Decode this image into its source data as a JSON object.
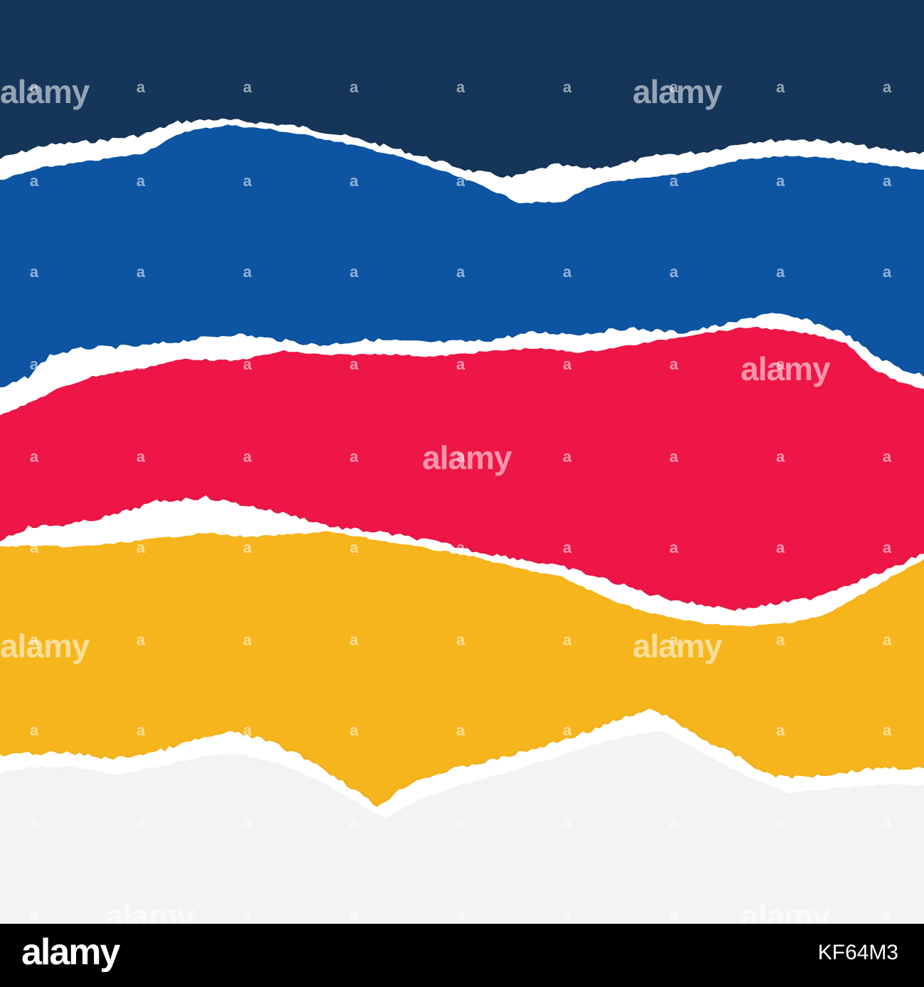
{
  "stripes": [
    {
      "name": "navy",
      "color": "#153559"
    },
    {
      "name": "blue",
      "color": "#0a55a3"
    },
    {
      "name": "red",
      "color": "#ed1847"
    },
    {
      "name": "yellow",
      "color": "#f6b51d"
    },
    {
      "name": "light-gray",
      "color": "#f2f3f3"
    }
  ],
  "torn_edge_color": "#ffffff",
  "shadow_color": "#000000",
  "watermark": {
    "word": "alamy",
    "mark": "a",
    "color": "rgba(255,255,255,0.55)"
  },
  "footer": {
    "background": "#000000",
    "logo": "alamy",
    "image_id": "KF64M3"
  }
}
